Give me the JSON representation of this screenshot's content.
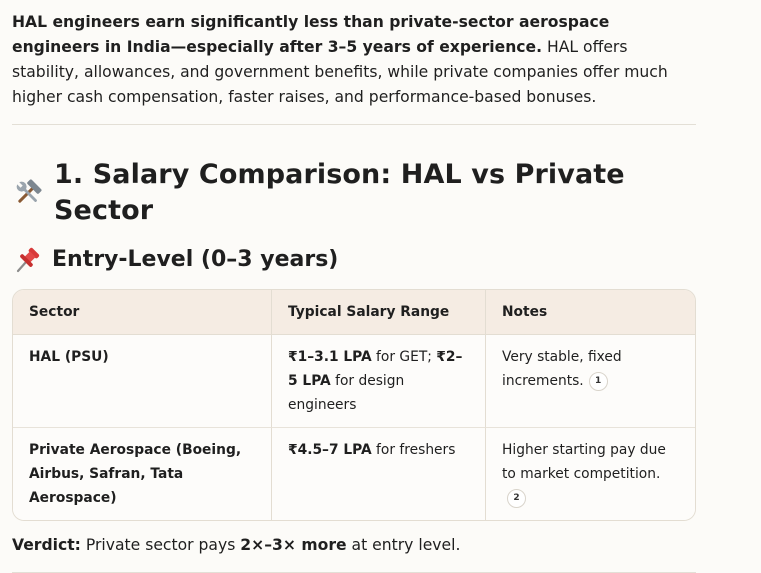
{
  "intro": {
    "bold": "HAL engineers earn significantly less than private-sector aerospace engineers in India—especially after 3–5 years of experience.",
    "rest": " HAL offers stability, allowances, and government benefits, while private companies offer much higher cash compensation, faster raises, and performance-based bonuses."
  },
  "section": {
    "icon": "hammer-and-wrench-icon",
    "title": "1. Salary Comparison: HAL vs Private Sector"
  },
  "subsection": {
    "icon": "pushpin-icon",
    "title": "Entry-Level (0–3 years)"
  },
  "table": {
    "headers": [
      "Sector",
      "Typical Salary Range",
      "Notes"
    ],
    "rows": [
      {
        "sector": "HAL (PSU)",
        "salary_bold_1": "₹1–3.1 LPA",
        "salary_text_1": " for GET; ",
        "salary_bold_2": "₹2–5 LPA",
        "salary_text_2": " for design engineers",
        "notes": "Very stable, fixed increments.",
        "cite": "1"
      },
      {
        "sector": "Private Aerospace (Boeing, Airbus, Safran, Tata Aerospace)",
        "salary_bold_1": "₹4.5–7 LPA",
        "salary_text_1": " for freshers",
        "notes": "Higher starting pay due to market competition.",
        "cite": "2"
      }
    ]
  },
  "verdict": {
    "label": "Verdict:",
    "text": " Private sector pays ",
    "bold": "2×–3× more",
    "tail": " at entry level."
  }
}
